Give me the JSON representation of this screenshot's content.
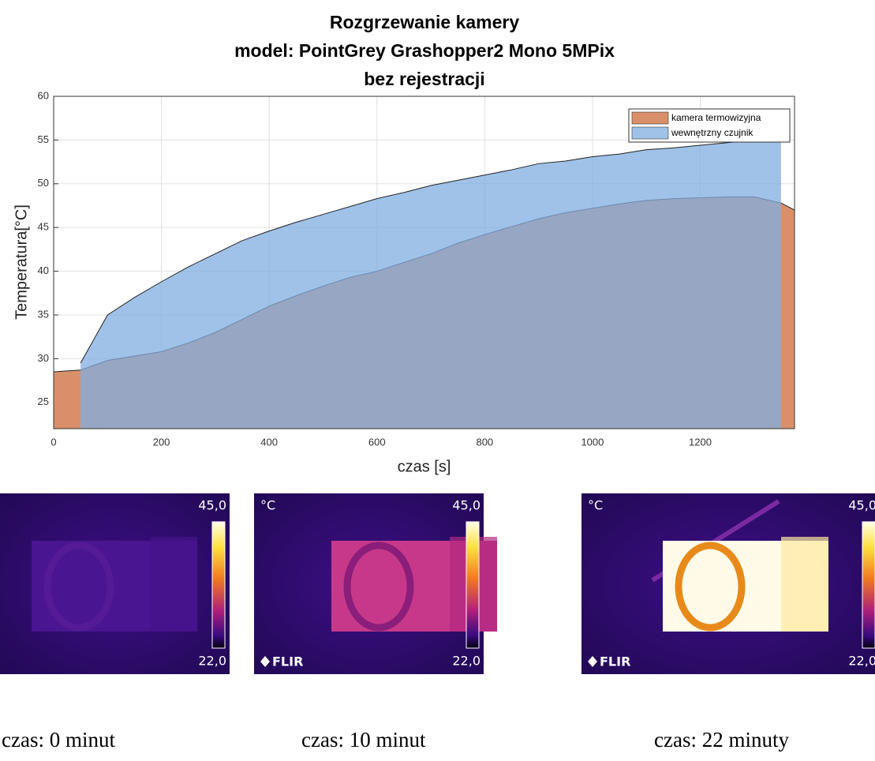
{
  "chart_data": {
    "type": "area",
    "title": [
      "Rozgrzewanie kamery",
      "model: PointGrey Grashopper2 Mono 5MPix",
      "bez rejestracji"
    ],
    "xlabel": "czas [s]",
    "ylabel": "Temperatura[°C]",
    "x": [
      0,
      50,
      100,
      150,
      200,
      250,
      300,
      350,
      400,
      450,
      500,
      550,
      600,
      650,
      700,
      750,
      800,
      850,
      900,
      950,
      1000,
      1050,
      1100,
      1150,
      1200,
      1250,
      1300,
      1350,
      1375
    ],
    "series": [
      {
        "name": "kamera termowizyjna",
        "color": "#d9906a",
        "values": [
          28.5,
          28.7,
          29.8,
          30.3,
          30.8,
          31.8,
          33,
          34.5,
          36,
          37.2,
          38.3,
          39.3,
          40,
          41,
          42,
          43.2,
          44.2,
          45.1,
          46,
          46.7,
          47.2,
          47.7,
          48.1,
          48.3,
          48.4,
          48.5,
          48.5,
          47.8,
          47
        ]
      },
      {
        "name": "wewnętrzny czujnik",
        "color": "#80aee0",
        "values": [
          null,
          29.5,
          35,
          37,
          38.8,
          40.5,
          42,
          43.5,
          44.6,
          45.6,
          46.5,
          47.4,
          48.3,
          49,
          49.8,
          50.4,
          51,
          51.6,
          52.3,
          52.6,
          53.1,
          53.4,
          53.9,
          54.1,
          54.4,
          54.7,
          55,
          55,
          null
        ]
      }
    ],
    "xlim": [
      0,
      1375
    ],
    "ylim": [
      22,
      60
    ],
    "xticks": [
      0,
      200,
      400,
      600,
      800,
      1000,
      1200
    ],
    "yticks": [
      25,
      30,
      35,
      40,
      45,
      50,
      55,
      60
    ],
    "grid": true,
    "legend": "northeast"
  },
  "thermal_images": [
    {
      "scale_max": "45,0",
      "scale_min": "22,0",
      "caption": "czas: 0 minut"
    },
    {
      "unit": "°C",
      "logo": "FLIR",
      "scale_max": "45,0",
      "scale_min": "22,0",
      "caption": "czas: 10 minut"
    },
    {
      "unit": "°C",
      "logo": "FLIR",
      "scale_max": "45,0",
      "scale_min": "22,0",
      "caption": "czas: 22 minuty"
    }
  ]
}
